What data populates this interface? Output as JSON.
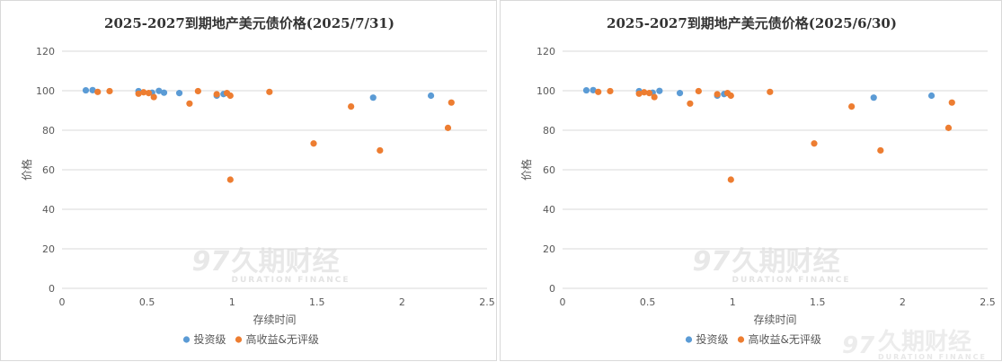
{
  "colors": {
    "investment_grade": "#5b9bd5",
    "high_yield": "#ed7d31",
    "grid": "#d9d9d9"
  },
  "watermark": {
    "logo_text": "久期财经",
    "logo_sub": "DURATION FINANCE"
  },
  "chart_data": [
    {
      "type": "scatter",
      "title": "2025-2027到期地产美元债价格(2025/7/31)",
      "xlabel": "存续时间",
      "ylabel": "价格",
      "xlim": [
        0,
        2.5
      ],
      "ylim": [
        0,
        120
      ],
      "xticks": [
        "0",
        "0.5",
        "1",
        "1.5",
        "2",
        "2.5"
      ],
      "yticks": [
        "0",
        "20",
        "40",
        "60",
        "80",
        "100",
        "120"
      ],
      "grid": "horizontal",
      "legend_position": "bottom",
      "series": [
        {
          "name": "投资级",
          "color": "#5b9bd5",
          "points": [
            [
              0.14,
              100.2
            ],
            [
              0.18,
              100.3
            ],
            [
              0.45,
              99.8
            ],
            [
              0.53,
              99.0
            ],
            [
              0.57,
              99.9
            ],
            [
              0.6,
              99.0
            ],
            [
              0.69,
              98.8
            ],
            [
              0.91,
              97.5
            ],
            [
              0.95,
              98.3
            ],
            [
              1.83,
              96.5
            ],
            [
              2.17,
              97.5
            ]
          ]
        },
        {
          "name": "高收益&无评级",
          "color": "#ed7d31",
          "points": [
            [
              0.21,
              99.4
            ],
            [
              0.28,
              99.8
            ],
            [
              0.45,
              98.5
            ],
            [
              0.48,
              99.2
            ],
            [
              0.51,
              98.8
            ],
            [
              0.54,
              96.8
            ],
            [
              0.75,
              93.5
            ],
            [
              0.8,
              99.8
            ],
            [
              0.91,
              98.2
            ],
            [
              0.97,
              98.8
            ],
            [
              0.99,
              97.5
            ],
            [
              0.99,
              55.0
            ],
            [
              1.22,
              99.4
            ],
            [
              1.48,
              73.3
            ],
            [
              1.7,
              92.0
            ],
            [
              1.87,
              69.8
            ],
            [
              2.27,
              81.2
            ],
            [
              2.29,
              94.0
            ]
          ]
        }
      ]
    },
    {
      "type": "scatter",
      "title": "2025-2027到期地产美元债价格(2025/6/30)",
      "xlabel": "存续时间",
      "ylabel": "价格",
      "xlim": [
        0,
        2.5
      ],
      "ylim": [
        0,
        120
      ],
      "xticks": [
        "0",
        "0.5",
        "1",
        "1.5",
        "2",
        "2.5"
      ],
      "yticks": [
        "0",
        "20",
        "40",
        "60",
        "80",
        "100",
        "120"
      ],
      "grid": "horizontal",
      "legend_position": "bottom",
      "series": [
        {
          "name": "投资级",
          "color": "#5b9bd5",
          "points": [
            [
              0.14,
              100.2
            ],
            [
              0.18,
              100.3
            ],
            [
              0.45,
              99.8
            ],
            [
              0.53,
              99.0
            ],
            [
              0.57,
              99.9
            ],
            [
              0.69,
              98.8
            ],
            [
              0.91,
              97.5
            ],
            [
              0.95,
              98.3
            ],
            [
              1.83,
              96.5
            ],
            [
              2.17,
              97.5
            ]
          ]
        },
        {
          "name": "高收益&无评级",
          "color": "#ed7d31",
          "points": [
            [
              0.21,
              99.4
            ],
            [
              0.28,
              99.8
            ],
            [
              0.45,
              98.5
            ],
            [
              0.48,
              99.2
            ],
            [
              0.51,
              98.8
            ],
            [
              0.54,
              96.8
            ],
            [
              0.75,
              93.5
            ],
            [
              0.8,
              99.8
            ],
            [
              0.91,
              98.2
            ],
            [
              0.97,
              98.8
            ],
            [
              0.99,
              97.5
            ],
            [
              0.99,
              55.0
            ],
            [
              1.22,
              99.4
            ],
            [
              1.48,
              73.3
            ],
            [
              1.7,
              92.0
            ],
            [
              1.87,
              69.8
            ],
            [
              2.27,
              81.2
            ],
            [
              2.29,
              94.0
            ]
          ]
        }
      ]
    }
  ]
}
